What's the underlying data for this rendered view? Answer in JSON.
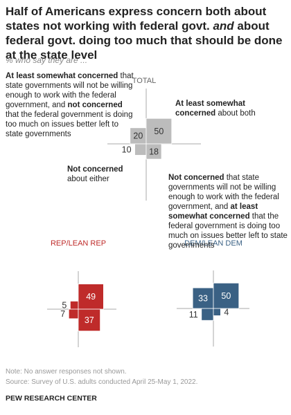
{
  "title": [
    {
      "text": "Half of Americans express concern both about states not working with federal govt. ",
      "italic": false
    },
    {
      "text": "and",
      "italic": true
    },
    {
      "text": " about federal govt. doing too much that should be done at the state level",
      "italic": false
    }
  ],
  "subtitle": "% who say they are ...",
  "chart_data": [
    {
      "type": "quadrant",
      "title": "TOTAL",
      "color": "#bcbcbc",
      "label_color": "#333333",
      "title_color": "#666666",
      "values": [
        20,
        50,
        10,
        18
      ],
      "quadrant_labels": [
        [
          {
            "text": "At least somewhat concerned",
            "bold": true
          },
          {
            "text": " that state governments will not be willing enough to work with the federal government, and ",
            "bold": false
          },
          {
            "text": "not concerned",
            "bold": true
          },
          {
            "text": " that the federal government is doing too much on issues better left to state governments",
            "bold": false
          }
        ],
        [
          {
            "text": "At least somewhat concerned",
            "bold": true
          },
          {
            "text": " about both",
            "bold": false
          }
        ],
        [
          {
            "text": "Not concerned",
            "bold": true
          },
          {
            "text": " about either",
            "bold": false
          }
        ],
        [
          {
            "text": "Not concerned",
            "bold": true
          },
          {
            "text": " that state governments will not be willing enough to work with the federal government, and ",
            "bold": false
          },
          {
            "text": "at least somewhat concerned",
            "bold": true
          },
          {
            "text": " that the federal government is doing too much on issues better left to state governments",
            "bold": false
          }
        ]
      ]
    },
    {
      "type": "quadrant",
      "title": "REP/LEAN REP",
      "color": "#bf2b2a",
      "label_color": "#ffffff",
      "title_color": "#bf2b2a",
      "values": [
        5,
        49,
        7,
        37
      ]
    },
    {
      "type": "quadrant",
      "title": "DEM/LEAN DEM",
      "color": "#3a6184",
      "label_color": "#ffffff",
      "title_color": "#3a6184",
      "values": [
        33,
        50,
        11,
        4
      ]
    }
  ],
  "note": "Note: No answer responses not shown.",
  "source": "Source: Survey of U.S. adults conducted April 25-May 1, 2022.",
  "footer": "PEW RESEARCH CENTER"
}
